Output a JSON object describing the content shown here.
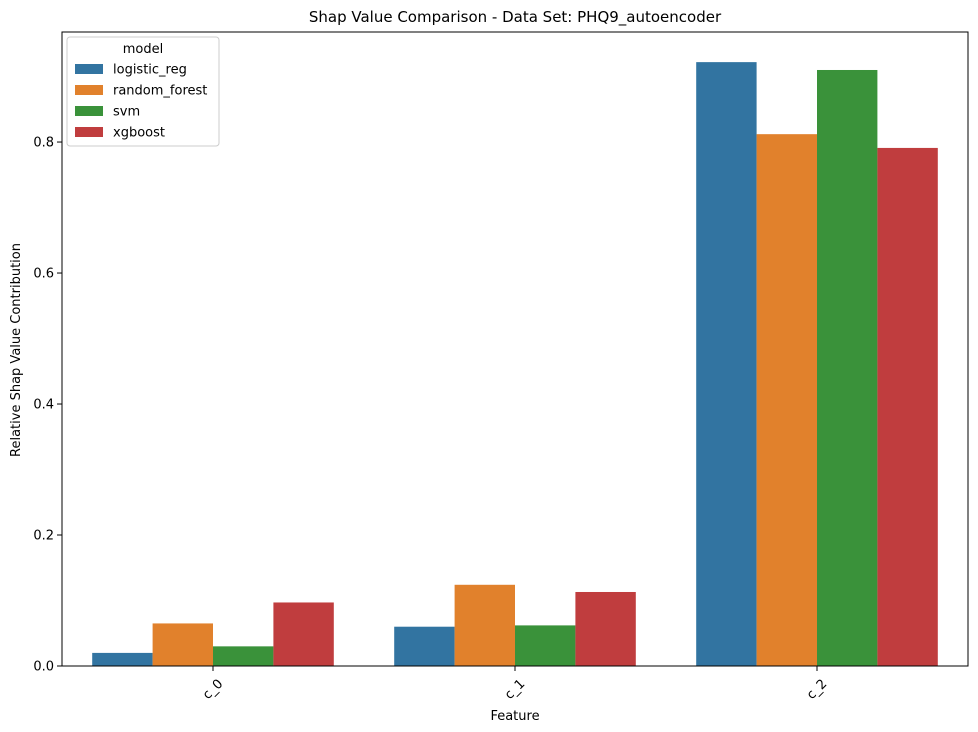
{
  "chart_data": {
    "type": "bar",
    "title": "Shap Value Comparison - Data Set: PHQ9_autoencoder",
    "xlabel": "Feature",
    "ylabel": "Relative Shap Value Contribution",
    "categories": [
      "c_0",
      "c_1",
      "c_2"
    ],
    "ylim": [
      0,
      0.968
    ],
    "yticks": [
      "0.0",
      "0.2",
      "0.4",
      "0.6",
      "0.8"
    ],
    "ytick_values": [
      0,
      0.2,
      0.4,
      0.6,
      0.8
    ],
    "grid": false,
    "legend": {
      "title": "model",
      "placement": "top-left"
    },
    "series": [
      {
        "name": "logistic_reg",
        "color": "#3274a1",
        "values": [
          0.02,
          0.06,
          0.922
        ]
      },
      {
        "name": "random_forest",
        "color": "#e1812c",
        "values": [
          0.065,
          0.124,
          0.812
        ]
      },
      {
        "name": "svm",
        "color": "#3a923a",
        "values": [
          0.03,
          0.062,
          0.91
        ]
      },
      {
        "name": "xgboost",
        "color": "#c03d3e",
        "values": [
          0.097,
          0.113,
          0.791
        ]
      }
    ]
  }
}
